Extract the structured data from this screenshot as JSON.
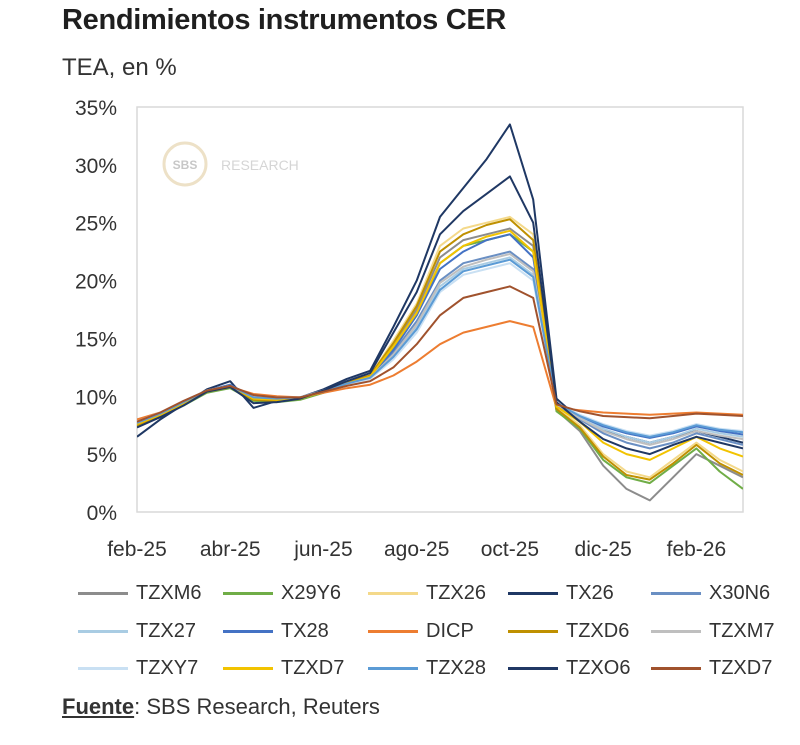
{
  "header": {
    "title": "Rendimientos instrumentos CER",
    "subtitle": "TEA, en %"
  },
  "watermark": {
    "logo_text": "SBS",
    "text": "RESEARCH"
  },
  "source": {
    "label": "Fuente",
    "text": ": SBS Research, Reuters"
  },
  "chart_data": {
    "type": "line",
    "title": "Rendimientos instrumentos CER",
    "ylabel": "TEA, en %",
    "xlabel": "",
    "ylim": [
      0,
      35
    ],
    "yticks": [
      0,
      5,
      10,
      15,
      20,
      25,
      30,
      35
    ],
    "ytick_labels": [
      "0%",
      "5%",
      "10%",
      "15%",
      "20%",
      "25%",
      "30%",
      "35%"
    ],
    "x_range": [
      0,
      13
    ],
    "xticks": [
      0,
      2,
      4,
      6,
      8,
      10,
      12
    ],
    "xtick_labels": [
      "feb-25",
      "abr-25",
      "jun-25",
      "ago-25",
      "oct-25",
      "dic-25",
      "feb-26"
    ],
    "x": [
      0,
      0.5,
      1,
      1.5,
      2,
      2.5,
      3,
      3.5,
      4,
      4.5,
      5,
      5.5,
      6,
      6.5,
      7,
      7.5,
      8,
      8.5,
      9,
      9.5,
      10,
      10.5,
      11,
      11.5,
      12,
      12.5,
      13
    ],
    "base": [
      7.8,
      8.5,
      9.5,
      10.5,
      11.0,
      10.0,
      9.8,
      9.8,
      10.5,
      11.0,
      11.5,
      13.0,
      15.0,
      17.0,
      18.5,
      19.5,
      20.5,
      21.0,
      9.5,
      8.5,
      8.0,
      7.5,
      7.0,
      7.5,
      8.0,
      7.5,
      7.2
    ],
    "series": [
      {
        "name": "TZXM6",
        "color": "#8c8c8c",
        "values": [
          7.5,
          8.3,
          9.3,
          10.4,
          10.8,
          9.7,
          9.6,
          9.8,
          10.4,
          11.2,
          11.8,
          14.5,
          17.5,
          22.0,
          23.5,
          24.0,
          24.5,
          23.0,
          8.8,
          7.0,
          4.0,
          2.0,
          1.0,
          3.0,
          5.0,
          4.0,
          3.0
        ]
      },
      {
        "name": "X29Y6",
        "color": "#70ad47",
        "values": [
          7.4,
          8.2,
          9.2,
          10.3,
          10.7,
          9.6,
          9.5,
          9.7,
          10.3,
          11.1,
          11.7,
          14.2,
          17.0,
          21.5,
          23.0,
          23.5,
          24.0,
          22.5,
          8.7,
          7.2,
          4.5,
          3.0,
          2.5,
          4.0,
          5.5,
          3.5,
          2.0
        ]
      },
      {
        "name": "TZX26",
        "color": "#f4d98a",
        "values": [
          7.6,
          8.4,
          9.4,
          10.5,
          10.9,
          9.8,
          9.7,
          9.9,
          10.5,
          11.2,
          11.8,
          14.8,
          18.0,
          23.0,
          24.5,
          25.0,
          25.5,
          24.0,
          9.0,
          7.5,
          5.0,
          3.5,
          3.0,
          4.5,
          6.0,
          4.5,
          3.5
        ]
      },
      {
        "name": "TX26",
        "color": "#1f3864",
        "values": [
          6.5,
          8.0,
          9.3,
          10.6,
          11.3,
          9.0,
          9.6,
          9.9,
          10.6,
          11.5,
          12.2,
          16.0,
          20.0,
          25.5,
          28.0,
          30.5,
          33.5,
          27.0,
          9.8,
          8.0,
          7.0,
          6.5,
          6.0,
          6.5,
          7.0,
          6.5,
          6.0
        ]
      },
      {
        "name": "X30N6",
        "color": "#6a8fc3",
        "values": [
          7.6,
          8.4,
          9.4,
          10.4,
          10.9,
          9.8,
          9.7,
          9.8,
          10.4,
          11.1,
          11.7,
          13.8,
          16.5,
          20.0,
          21.5,
          22.0,
          22.5,
          21.0,
          9.2,
          8.0,
          6.8,
          6.0,
          5.5,
          6.0,
          6.8,
          6.3,
          5.8
        ]
      },
      {
        "name": "TZX27",
        "color": "#a9cce3",
        "values": [
          7.7,
          8.5,
          9.5,
          10.5,
          10.9,
          9.9,
          9.8,
          9.9,
          10.5,
          11.1,
          11.6,
          13.5,
          16.0,
          19.5,
          21.0,
          21.5,
          22.0,
          20.5,
          9.3,
          8.2,
          7.2,
          6.5,
          6.0,
          6.5,
          7.2,
          6.8,
          6.5
        ]
      },
      {
        "name": "TX28",
        "color": "#4472c4",
        "values": [
          7.7,
          8.5,
          9.5,
          10.5,
          11.0,
          9.9,
          9.8,
          9.9,
          10.5,
          11.2,
          11.7,
          14.0,
          17.0,
          21.0,
          22.5,
          23.5,
          24.0,
          22.0,
          9.4,
          8.3,
          7.4,
          6.8,
          6.4,
          6.8,
          7.4,
          7.0,
          6.7
        ]
      },
      {
        "name": "DICP",
        "color": "#ed7d31",
        "values": [
          8.0,
          8.6,
          9.6,
          10.4,
          10.8,
          10.2,
          10.0,
          9.9,
          10.3,
          10.7,
          11.0,
          11.8,
          13.0,
          14.5,
          15.5,
          16.0,
          16.5,
          16.0,
          9.0,
          8.8,
          8.6,
          8.5,
          8.4,
          8.5,
          8.6,
          8.5,
          8.4
        ]
      },
      {
        "name": "TZXD6",
        "color": "#bf9000",
        "values": [
          7.5,
          8.3,
          9.3,
          10.4,
          10.8,
          9.7,
          9.6,
          9.8,
          10.4,
          11.2,
          11.8,
          14.6,
          17.8,
          22.5,
          24.0,
          24.8,
          25.3,
          23.5,
          8.9,
          7.3,
          4.8,
          3.2,
          2.8,
          4.2,
          5.8,
          4.2,
          3.2
        ]
      },
      {
        "name": "TZXM7",
        "color": "#bfbfbf",
        "values": [
          7.7,
          8.5,
          9.5,
          10.5,
          10.9,
          9.9,
          9.8,
          9.9,
          10.5,
          11.1,
          11.6,
          13.6,
          16.2,
          19.8,
          21.2,
          21.8,
          22.3,
          20.8,
          9.3,
          8.1,
          7.0,
          6.3,
          5.8,
          6.3,
          7.0,
          6.6,
          6.3
        ]
      },
      {
        "name": "TZXY7",
        "color": "#c9e0f3",
        "values": [
          7.8,
          8.6,
          9.6,
          10.5,
          10.9,
          10.0,
          9.9,
          9.9,
          10.4,
          11.0,
          11.5,
          13.2,
          15.5,
          19.0,
          20.5,
          21.0,
          21.5,
          20.0,
          9.4,
          8.4,
          7.6,
          7.0,
          6.6,
          7.0,
          7.6,
          7.2,
          7.0
        ]
      },
      {
        "name": "TZXD7",
        "color": "#f2c300",
        "values": [
          7.6,
          8.4,
          9.4,
          10.4,
          10.9,
          9.8,
          9.7,
          9.8,
          10.4,
          11.1,
          11.7,
          14.3,
          17.2,
          21.5,
          23.0,
          23.8,
          24.3,
          22.5,
          9.1,
          7.8,
          6.0,
          5.0,
          4.5,
          5.5,
          6.5,
          5.5,
          4.8
        ]
      },
      {
        "name": "TZX28",
        "color": "#5b9bd5",
        "values": [
          7.7,
          8.5,
          9.5,
          10.5,
          10.9,
          9.9,
          9.8,
          9.9,
          10.4,
          11.1,
          11.6,
          13.4,
          15.8,
          19.2,
          20.8,
          21.3,
          21.8,
          20.3,
          9.4,
          8.3,
          7.5,
          6.9,
          6.5,
          6.9,
          7.5,
          7.1,
          6.9
        ]
      },
      {
        "name": "TZXO6",
        "color": "#203864",
        "values": [
          7.3,
          8.2,
          9.2,
          10.4,
          10.8,
          9.4,
          9.5,
          9.8,
          10.5,
          11.3,
          12.0,
          15.5,
          19.0,
          24.0,
          26.0,
          27.5,
          29.0,
          25.0,
          9.5,
          7.8,
          6.3,
          5.5,
          5.0,
          5.8,
          6.5,
          6.0,
          5.5
        ]
      },
      {
        "name": "TZXD7",
        "color": "#a0522d",
        "values": [
          7.8,
          8.6,
          9.6,
          10.5,
          10.9,
          10.1,
          9.9,
          9.9,
          10.4,
          10.9,
          11.3,
          12.5,
          14.5,
          17.0,
          18.5,
          19.0,
          19.5,
          18.5,
          9.3,
          8.7,
          8.3,
          8.2,
          8.1,
          8.3,
          8.5,
          8.4,
          8.3
        ]
      }
    ]
  }
}
